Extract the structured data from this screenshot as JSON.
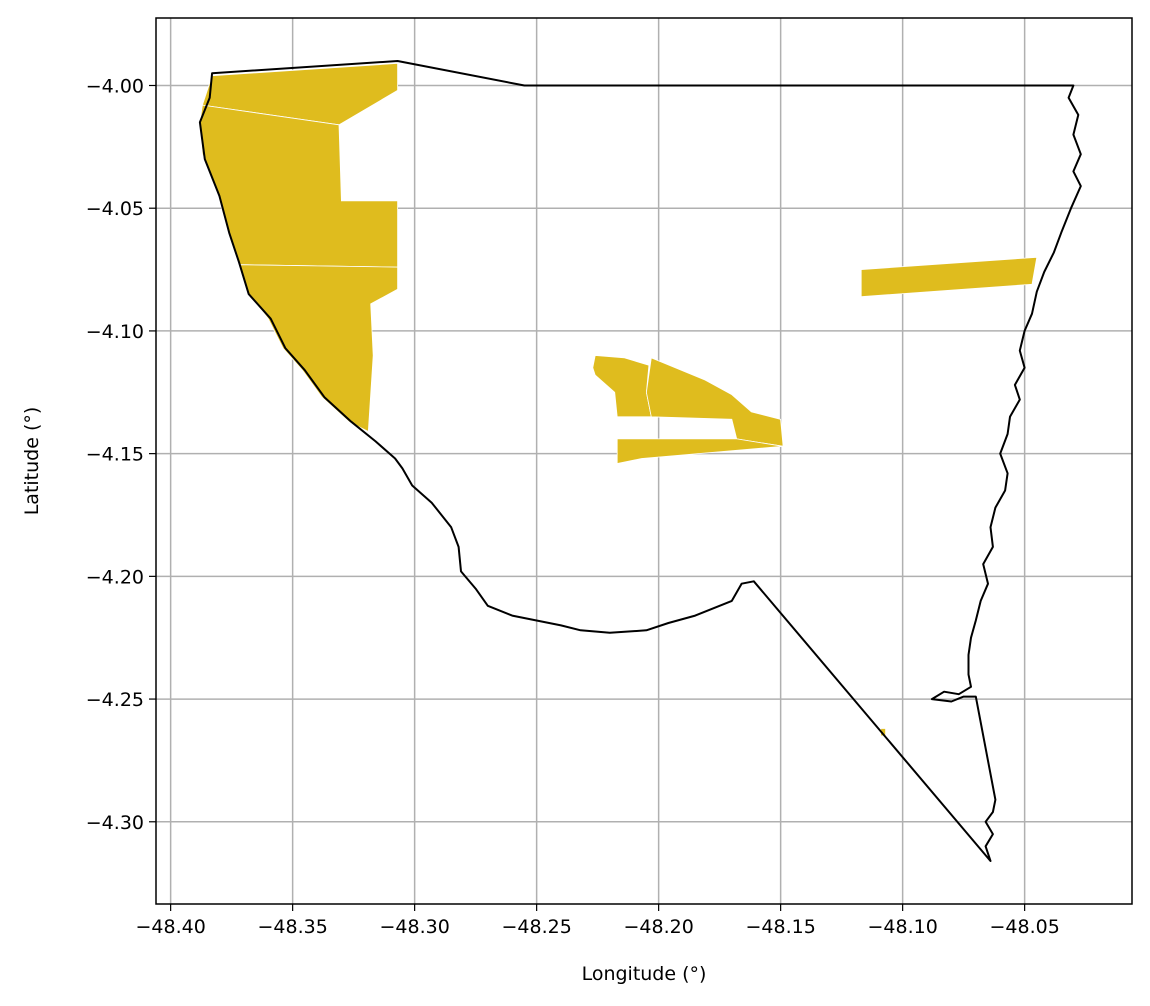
{
  "map": {
    "xlabel": "Longitude (°)",
    "ylabel": "Latitude (°)",
    "xlim": [
      -48.406,
      -48.006
    ],
    "ylim": [
      -4.3335,
      -3.9725
    ],
    "x_ticks": [
      -48.4,
      -48.35,
      -48.3,
      -48.25,
      -48.2,
      -48.15,
      -48.1,
      -48.05
    ],
    "x_tick_labels": [
      "−48.40",
      "−48.35",
      "−48.30",
      "−48.25",
      "−48.20",
      "−48.15",
      "−48.10",
      "−48.05"
    ],
    "y_ticks": [
      -4.0,
      -4.05,
      -4.1,
      -4.15,
      -4.2,
      -4.25,
      -4.3
    ],
    "y_tick_labels": [
      "−4.00",
      "−4.05",
      "−4.10",
      "−4.15",
      "−4.20",
      "−4.25",
      "−4.30"
    ],
    "grid": true,
    "fill_color": "#DFBC1E",
    "boundary_color": "#000000",
    "boundary": [
      [
        -48.383,
        -3.995
      ],
      [
        -48.307,
        -3.99
      ],
      [
        -48.255,
        -4.0
      ],
      [
        -48.03,
        -4.0
      ],
      [
        -48.032,
        -4.005
      ],
      [
        -48.028,
        -4.012
      ],
      [
        -48.03,
        -4.02
      ],
      [
        -48.027,
        -4.028
      ],
      [
        -48.03,
        -4.035
      ],
      [
        -48.027,
        -4.041
      ],
      [
        -48.031,
        -4.05
      ],
      [
        -48.035,
        -4.06
      ],
      [
        -48.038,
        -4.068
      ],
      [
        -48.042,
        -4.076
      ],
      [
        -48.045,
        -4.084
      ],
      [
        -48.047,
        -4.093
      ],
      [
        -48.05,
        -4.1
      ],
      [
        -48.052,
        -4.108
      ],
      [
        -48.05,
        -4.115
      ],
      [
        -48.054,
        -4.122
      ],
      [
        -48.052,
        -4.128
      ],
      [
        -48.056,
        -4.135
      ],
      [
        -48.057,
        -4.142
      ],
      [
        -48.06,
        -4.15
      ],
      [
        -48.057,
        -4.158
      ],
      [
        -48.058,
        -4.165
      ],
      [
        -48.062,
        -4.172
      ],
      [
        -48.064,
        -4.18
      ],
      [
        -48.063,
        -4.188
      ],
      [
        -48.067,
        -4.195
      ],
      [
        -48.065,
        -4.203
      ],
      [
        -48.068,
        -4.21
      ],
      [
        -48.07,
        -4.218
      ],
      [
        -48.072,
        -4.225
      ],
      [
        -48.073,
        -4.232
      ],
      [
        -48.073,
        -4.24
      ],
      [
        -48.072,
        -4.245
      ],
      [
        -48.077,
        -4.248
      ],
      [
        -48.083,
        -4.247
      ],
      [
        -48.088,
        -4.25
      ],
      [
        -48.08,
        -4.251
      ],
      [
        -48.075,
        -4.249
      ],
      [
        -48.07,
        -4.249
      ],
      [
        -48.062,
        -4.291
      ],
      [
        -48.063,
        -4.296
      ],
      [
        -48.066,
        -4.3
      ],
      [
        -48.063,
        -4.305
      ],
      [
        -48.066,
        -4.31
      ],
      [
        -48.064,
        -4.316
      ],
      [
        -48.161,
        -4.202
      ],
      [
        -48.166,
        -4.203
      ],
      [
        -48.17,
        -4.21
      ],
      [
        -48.185,
        -4.216
      ],
      [
        -48.196,
        -4.219
      ],
      [
        -48.205,
        -4.222
      ],
      [
        -48.22,
        -4.223
      ],
      [
        -48.232,
        -4.222
      ],
      [
        -48.24,
        -4.22
      ],
      [
        -48.25,
        -4.218
      ],
      [
        -48.26,
        -4.216
      ],
      [
        -48.27,
        -4.212
      ],
      [
        -48.275,
        -4.205
      ],
      [
        -48.281,
        -4.198
      ],
      [
        -48.282,
        -4.188
      ],
      [
        -48.285,
        -4.18
      ],
      [
        -48.293,
        -4.17
      ],
      [
        -48.301,
        -4.163
      ],
      [
        -48.305,
        -4.156
      ],
      [
        -48.308,
        -4.152
      ],
      [
        -48.316,
        -4.145
      ],
      [
        -48.326,
        -4.137
      ],
      [
        -48.337,
        -4.127
      ],
      [
        -48.345,
        -4.116
      ],
      [
        -48.353,
        -4.107
      ],
      [
        -48.359,
        -4.095
      ],
      [
        -48.368,
        -4.085
      ],
      [
        -48.372,
        -4.072
      ],
      [
        -48.376,
        -4.06
      ],
      [
        -48.38,
        -4.045
      ],
      [
        -48.386,
        -4.03
      ],
      [
        -48.388,
        -4.015
      ],
      [
        -48.384,
        -4.005
      ],
      [
        -48.383,
        -3.995
      ]
    ],
    "regions": [
      {
        "name": "west-top-parcel",
        "coords": [
          [
            -48.383,
            -3.996
          ],
          [
            -48.307,
            -3.991
          ],
          [
            -48.307,
            -4.002
          ],
          [
            -48.331,
            -4.016
          ],
          [
            -48.387,
            -4.008
          ]
        ]
      },
      {
        "name": "west-middle-parcel",
        "coords": [
          [
            -48.387,
            -4.008
          ],
          [
            -48.331,
            -4.016
          ],
          [
            -48.33,
            -4.047
          ],
          [
            -48.307,
            -4.047
          ],
          [
            -48.307,
            -4.074
          ],
          [
            -48.372,
            -4.073
          ],
          [
            -48.377,
            -4.058
          ],
          [
            -48.381,
            -4.043
          ],
          [
            -48.387,
            -4.028
          ],
          [
            -48.388,
            -4.015
          ]
        ]
      },
      {
        "name": "west-lower-parcel",
        "coords": [
          [
            -48.372,
            -4.073
          ],
          [
            -48.307,
            -4.074
          ],
          [
            -48.307,
            -4.083
          ],
          [
            -48.318,
            -4.089
          ],
          [
            -48.317,
            -4.11
          ],
          [
            -48.319,
            -4.141
          ],
          [
            -48.327,
            -4.137
          ],
          [
            -48.338,
            -4.127
          ],
          [
            -48.346,
            -4.116
          ],
          [
            -48.354,
            -4.107
          ],
          [
            -48.36,
            -4.095
          ],
          [
            -48.368,
            -4.085
          ]
        ]
      },
      {
        "name": "central-west-parcel",
        "coords": [
          [
            -48.226,
            -4.11
          ],
          [
            -48.214,
            -4.111
          ],
          [
            -48.204,
            -4.114
          ],
          [
            -48.205,
            -4.125
          ],
          [
            -48.203,
            -4.135
          ],
          [
            -48.217,
            -4.135
          ],
          [
            -48.218,
            -4.125
          ],
          [
            -48.226,
            -4.118
          ],
          [
            -48.227,
            -4.115
          ]
        ]
      },
      {
        "name": "central-east-parcel",
        "coords": [
          [
            -48.203,
            -4.111
          ],
          [
            -48.181,
            -4.12
          ],
          [
            -48.17,
            -4.126
          ],
          [
            -48.162,
            -4.133
          ],
          [
            -48.15,
            -4.136
          ],
          [
            -48.149,
            -4.147
          ],
          [
            -48.168,
            -4.144
          ],
          [
            -48.17,
            -4.136
          ],
          [
            -48.203,
            -4.135
          ],
          [
            -48.205,
            -4.125
          ]
        ]
      },
      {
        "name": "central-south-parcel",
        "coords": [
          [
            -48.217,
            -4.144
          ],
          [
            -48.168,
            -4.144
          ],
          [
            -48.149,
            -4.147
          ],
          [
            -48.207,
            -4.152
          ],
          [
            -48.217,
            -4.154
          ]
        ]
      },
      {
        "name": "east-strip-parcel",
        "coords": [
          [
            -48.117,
            -4.075
          ],
          [
            -48.045,
            -4.07
          ],
          [
            -48.047,
            -4.081
          ],
          [
            -48.117,
            -4.086
          ]
        ]
      },
      {
        "name": "south-east-speck",
        "coords": [
          [
            -48.109,
            -4.262
          ],
          [
            -48.107,
            -4.262
          ],
          [
            -48.107,
            -4.265
          ],
          [
            -48.109,
            -4.265
          ]
        ]
      }
    ]
  }
}
